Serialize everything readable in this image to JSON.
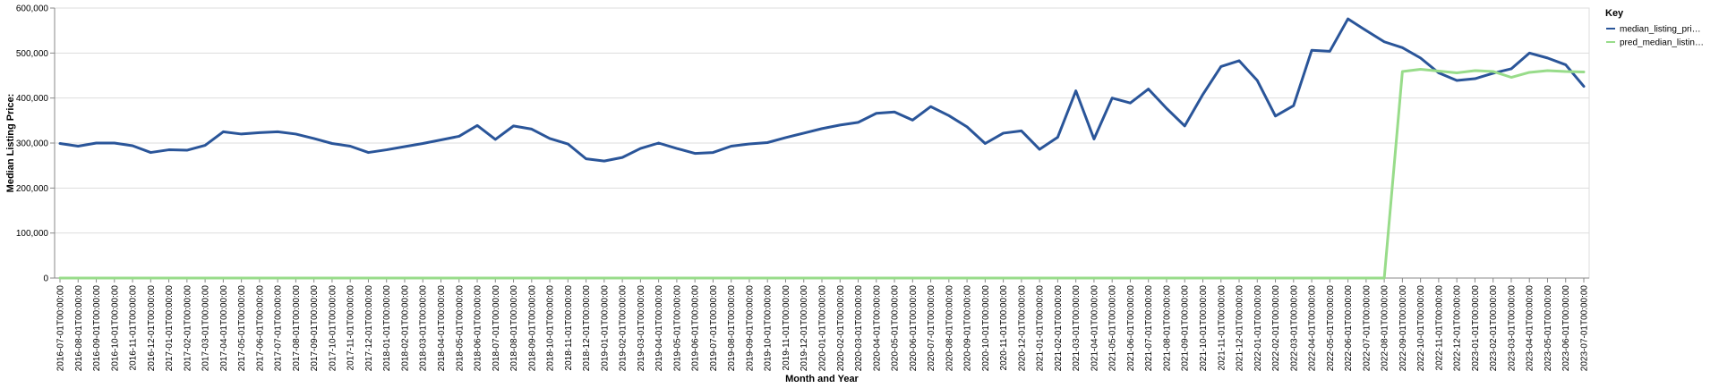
{
  "chart_data": {
    "type": "line",
    "xlabel": "Month and Year",
    "ylabel": "Median Listing Price:",
    "ylim": [
      0,
      600000
    ],
    "yticks": [
      "0",
      "100,000",
      "200,000",
      "300,000",
      "400,000",
      "500,000",
      "600,000"
    ],
    "grid": true,
    "legend": {
      "title": "Key",
      "position": "right"
    },
    "x": [
      "2016-07-01T00:00:00",
      "2016-08-01T00:00:00",
      "2016-09-01T00:00:00",
      "2016-10-01T00:00:00",
      "2016-11-01T00:00:00",
      "2016-12-01T00:00:00",
      "2017-01-01T00:00:00",
      "2017-02-01T00:00:00",
      "2017-03-01T00:00:00",
      "2017-04-01T00:00:00",
      "2017-05-01T00:00:00",
      "2017-06-01T00:00:00",
      "2017-07-01T00:00:00",
      "2017-08-01T00:00:00",
      "2017-09-01T00:00:00",
      "2017-10-01T00:00:00",
      "2017-11-01T00:00:00",
      "2017-12-01T00:00:00",
      "2018-01-01T00:00:00",
      "2018-02-01T00:00:00",
      "2018-03-01T00:00:00",
      "2018-04-01T00:00:00",
      "2018-05-01T00:00:00",
      "2018-06-01T00:00:00",
      "2018-07-01T00:00:00",
      "2018-08-01T00:00:00",
      "2018-09-01T00:00:00",
      "2018-10-01T00:00:00",
      "2018-11-01T00:00:00",
      "2018-12-01T00:00:00",
      "2019-01-01T00:00:00",
      "2019-02-01T00:00:00",
      "2019-03-01T00:00:00",
      "2019-04-01T00:00:00",
      "2019-05-01T00:00:00",
      "2019-06-01T00:00:00",
      "2019-07-01T00:00:00",
      "2019-08-01T00:00:00",
      "2019-09-01T00:00:00",
      "2019-10-01T00:00:00",
      "2019-11-01T00:00:00",
      "2019-12-01T00:00:00",
      "2020-01-01T00:00:00",
      "2020-02-01T00:00:00",
      "2020-03-01T00:00:00",
      "2020-04-01T00:00:00",
      "2020-05-01T00:00:00",
      "2020-06-01T00:00:00",
      "2020-07-01T00:00:00",
      "2020-08-01T00:00:00",
      "2020-09-01T00:00:00",
      "2020-10-01T00:00:00",
      "2020-11-01T00:00:00",
      "2020-12-01T00:00:00",
      "2021-01-01T00:00:00",
      "2021-02-01T00:00:00",
      "2021-03-01T00:00:00",
      "2021-04-01T00:00:00",
      "2021-05-01T00:00:00",
      "2021-06-01T00:00:00",
      "2021-07-01T00:00:00",
      "2021-08-01T00:00:00",
      "2021-09-01T00:00:00",
      "2021-10-01T00:00:00",
      "2021-11-01T00:00:00",
      "2021-12-01T00:00:00",
      "2022-01-01T00:00:00",
      "2022-02-01T00:00:00",
      "2022-03-01T00:00:00",
      "2022-04-01T00:00:00",
      "2022-05-01T00:00:00",
      "2022-06-01T00:00:00",
      "2022-07-01T00:00:00",
      "2022-08-01T00:00:00",
      "2022-09-01T00:00:00",
      "2022-10-01T00:00:00",
      "2022-11-01T00:00:00",
      "2022-12-01T00:00:00",
      "2023-01-01T00:00:00",
      "2023-02-01T00:00:00",
      "2023-03-01T00:00:00",
      "2023-04-01T00:00:00",
      "2023-05-01T00:00:00",
      "2023-06-01T00:00:00",
      "2023-07-01T00:00:00"
    ],
    "series": [
      {
        "name": "median_listing_pri…",
        "color": "#2a5599",
        "values": [
          299000,
          293000,
          300000,
          300000,
          294000,
          279000,
          285000,
          284000,
          295000,
          325000,
          320000,
          323000,
          325000,
          320000,
          310000,
          299000,
          293000,
          279000,
          285000,
          292000,
          299000,
          307000,
          315000,
          339000,
          308000,
          338000,
          331000,
          310000,
          298000,
          265000,
          260000,
          268000,
          288000,
          300000,
          288000,
          277000,
          279000,
          293000,
          298000,
          301000,
          312000,
          322000,
          332000,
          340000,
          346000,
          366000,
          369000,
          351000,
          381000,
          361000,
          336000,
          299000,
          322000,
          327000,
          286000,
          313000,
          416000,
          309000,
          400000,
          389000,
          420000,
          377000,
          338000,
          408000,
          470000,
          483000,
          439000,
          360000,
          383000,
          506000,
          504000,
          576000,
          550000,
          525000,
          512000,
          489000,
          456000,
          439000,
          443000,
          455000,
          465000,
          500000,
          489000,
          474000,
          426000
        ]
      },
      {
        "name": "pred_median_listin…",
        "color": "#98dc8a",
        "values": [
          0,
          0,
          0,
          0,
          0,
          0,
          0,
          0,
          0,
          0,
          0,
          0,
          0,
          0,
          0,
          0,
          0,
          0,
          0,
          0,
          0,
          0,
          0,
          0,
          0,
          0,
          0,
          0,
          0,
          0,
          0,
          0,
          0,
          0,
          0,
          0,
          0,
          0,
          0,
          0,
          0,
          0,
          0,
          0,
          0,
          0,
          0,
          0,
          0,
          0,
          0,
          0,
          0,
          0,
          0,
          0,
          0,
          0,
          0,
          0,
          0,
          0,
          0,
          0,
          0,
          0,
          0,
          0,
          0,
          0,
          0,
          0,
          0,
          0,
          459000,
          464000,
          460000,
          456000,
          461000,
          459000,
          446000,
          457000,
          461000,
          459000,
          458000
        ]
      }
    ]
  }
}
